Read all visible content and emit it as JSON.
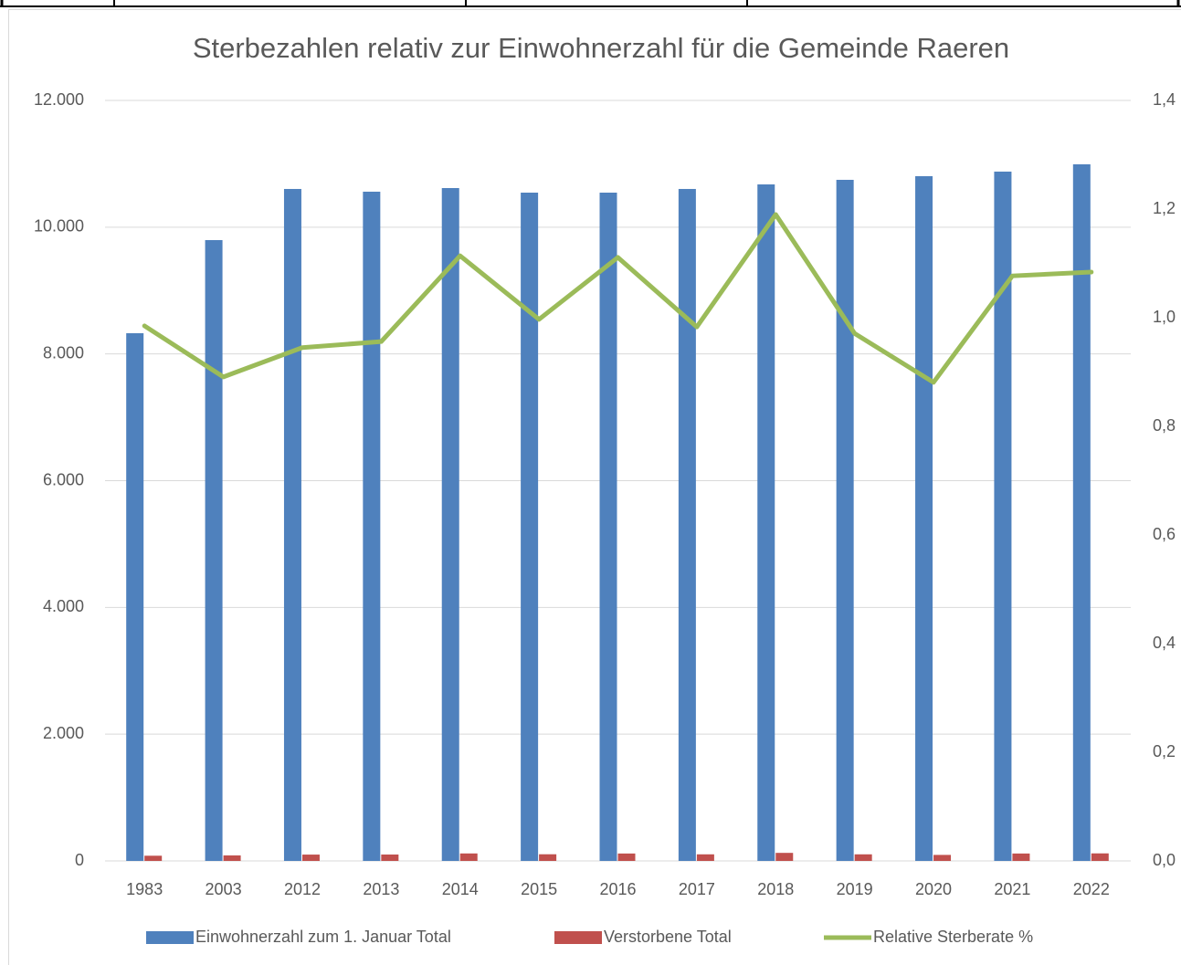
{
  "chart_data": {
    "type": "bar_line",
    "title": "Sterbezahlen relativ zur Einwohnerzahl für die Gemeinde Raeren",
    "categories": [
      "1983",
      "2003",
      "2012",
      "2013",
      "2014",
      "2015",
      "2016",
      "2017",
      "2018",
      "2019",
      "2020",
      "2021",
      "2022"
    ],
    "series": [
      {
        "name": "Einwohnerzahl zum 1. Januar Total",
        "color": "#4f81bd",
        "type": "bar",
        "values": [
          8327,
          9796,
          10603,
          10560,
          10617,
          10545,
          10545,
          10603,
          10675,
          10747,
          10805,
          10877,
          10992
        ]
      },
      {
        "name": "Verstorbene Total",
        "color": "#c0504d",
        "type": "bar",
        "values": [
          82,
          87,
          100,
          101,
          118,
          105,
          117,
          104,
          127,
          104,
          95,
          117,
          119
        ]
      },
      {
        "name": "Relative Sterberate %",
        "color": "#9bbb59",
        "type": "line",
        "axis": "y2",
        "values": [
          0.985,
          0.891,
          0.945,
          0.956,
          1.114,
          0.997,
          1.111,
          0.983,
          1.19,
          0.971,
          0.881,
          1.077,
          1.084
        ]
      }
    ],
    "ylim": [
      0,
      12000
    ],
    "yticks": [
      0,
      {
        "value": 2000,
        "label": "2.000"
      },
      {
        "value": 4000,
        "label": "4.000"
      },
      {
        "value": 6000,
        "label": "6.000"
      },
      {
        "value": 8000,
        "label": "8.000"
      },
      {
        "value": 10000,
        "label": "10.000"
      },
      {
        "value": 12000,
        "label": "12.000"
      }
    ],
    "y2lim": [
      0,
      1.4
    ],
    "y2ticks": [
      {
        "value": 0,
        "label": "0,0"
      },
      {
        "value": 0.2,
        "label": "0,2"
      },
      {
        "value": 0.4,
        "label": "0,4"
      },
      {
        "value": 0.6,
        "label": "0,6"
      },
      {
        "value": 0.8,
        "label": "0,8"
      },
      {
        "value": 1.0,
        "label": "1,0"
      },
      {
        "value": 1.2,
        "label": "1,2"
      },
      {
        "value": 1.4,
        "label": "1,4"
      }
    ],
    "grid": true,
    "legend": "bottom"
  }
}
